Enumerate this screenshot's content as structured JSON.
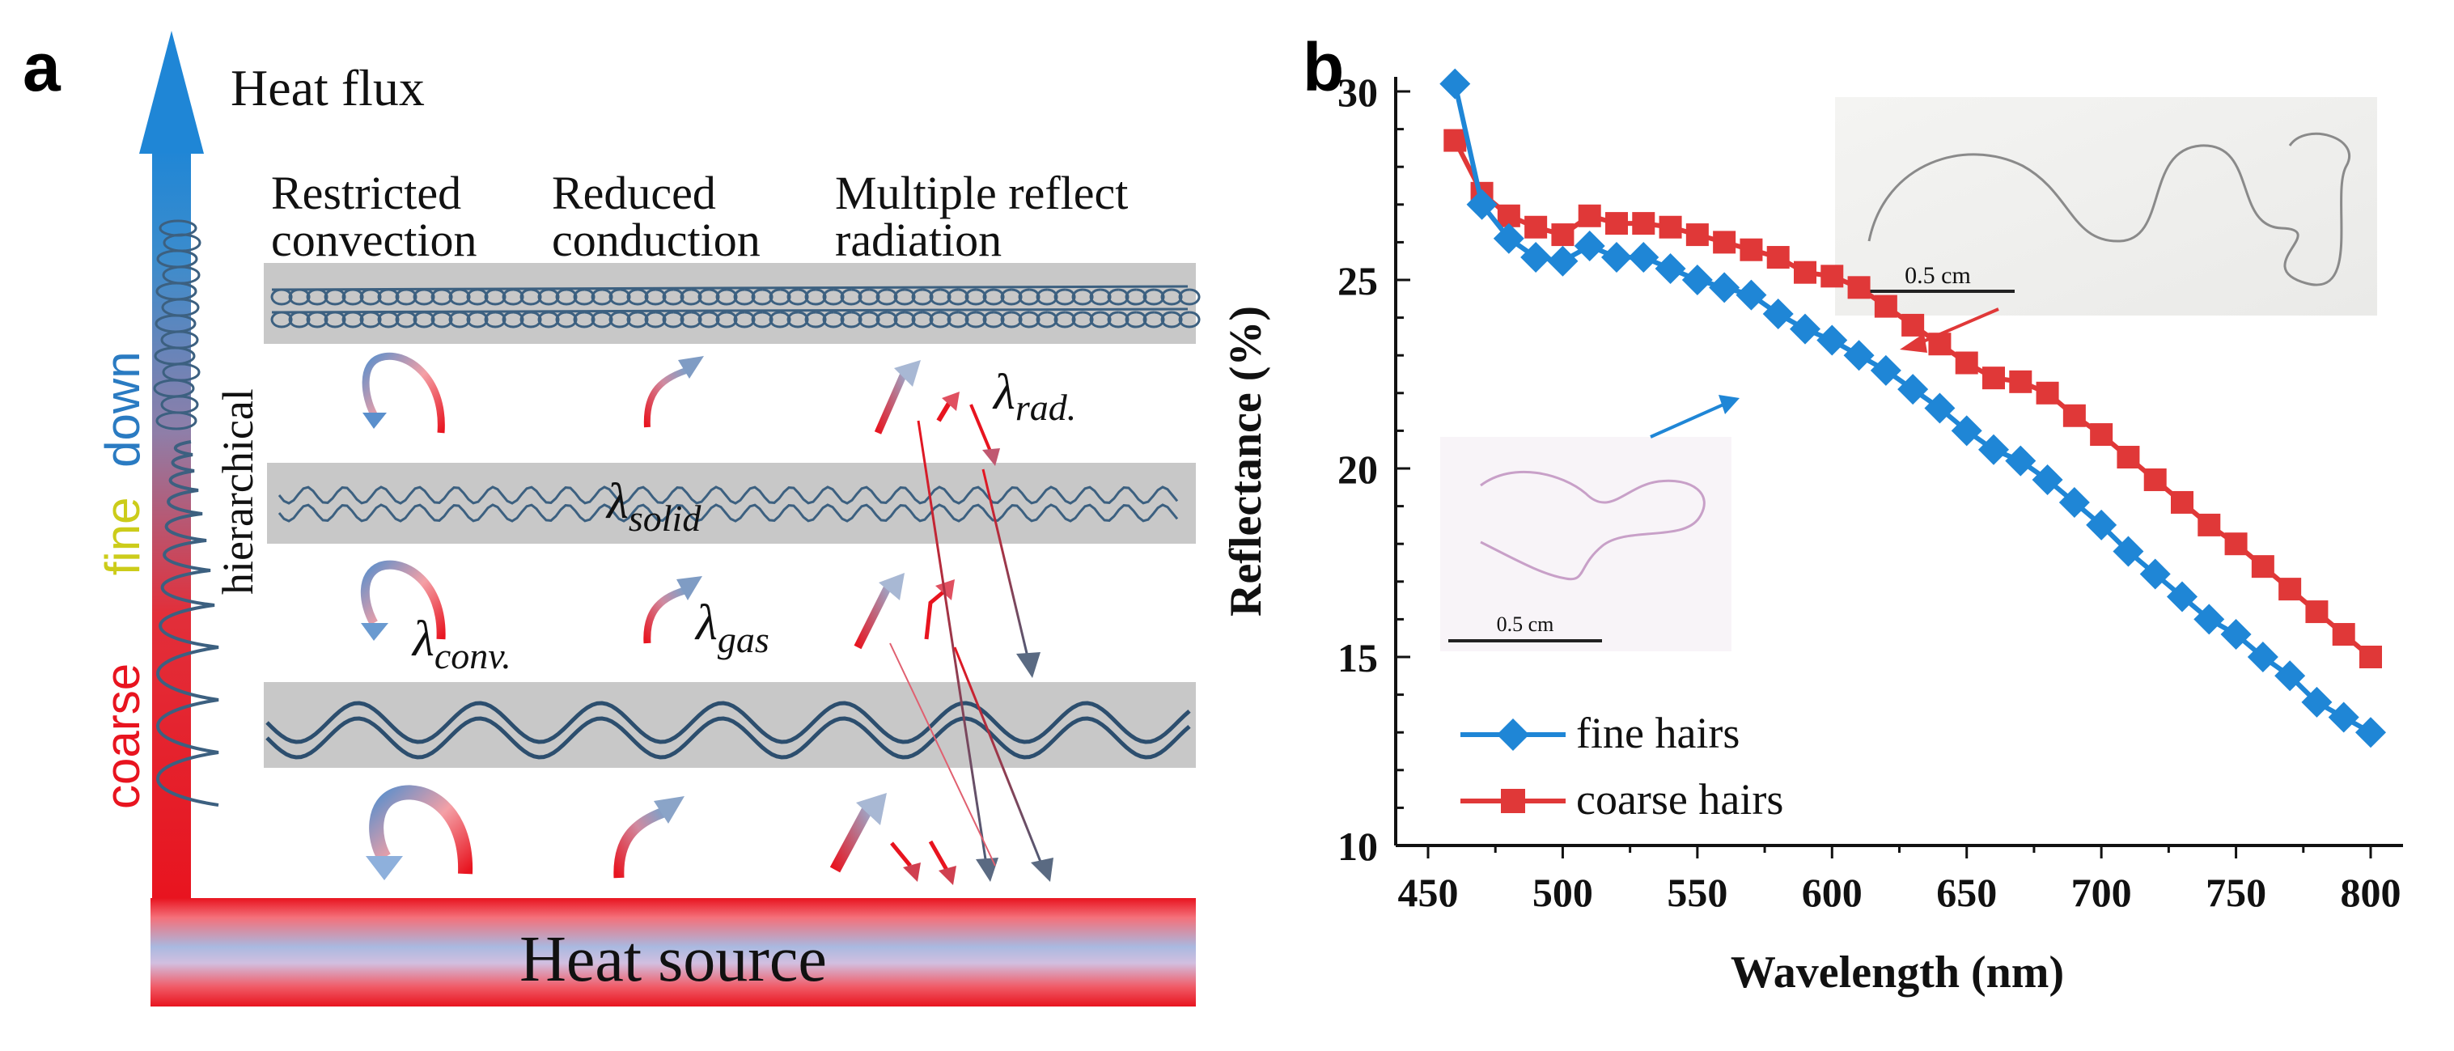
{
  "panel_a": {
    "label": "a",
    "heat_flux": "Heat flux",
    "gradient_words": {
      "coarse": "coarse",
      "fine": "fine",
      "down": "down"
    },
    "hierarchical": "hierarchical",
    "mechanisms": {
      "convection_1": "Restricted",
      "convection_2": "convection",
      "conduction_1": "Reduced",
      "conduction_2": "conduction",
      "radiation_1": "Multiple reflect",
      "radiation_2": "radiation"
    },
    "symbols": {
      "lambda": "λ",
      "rad_sub": "rad.",
      "solid_sub": "solid",
      "conv_sub": "conv.",
      "gas_sub": "gas"
    },
    "heat_source": "Heat source",
    "colors": {
      "hot": "#e8141f",
      "cool": "#2a7bc2",
      "fine_text": "#cccc1a",
      "layer": "#c8c8c8",
      "fiber": "#3c6080"
    }
  },
  "panel_b": {
    "label": "b",
    "inset_scale_top": "0.5 cm",
    "inset_scale_bottom": "0.5 cm"
  },
  "chart_data": {
    "type": "line",
    "xlabel": "Wavelength (nm)",
    "ylabel": "Reflectance (%)",
    "xlim": [
      450,
      800
    ],
    "ylim": [
      10,
      30
    ],
    "xticks": [
      450,
      500,
      550,
      600,
      650,
      700,
      750,
      800
    ],
    "yticks": [
      10,
      15,
      20,
      25,
      30
    ],
    "legend_position": "bottom-left",
    "grid": false,
    "x": [
      460,
      470,
      480,
      490,
      500,
      510,
      520,
      530,
      540,
      550,
      560,
      570,
      580,
      590,
      600,
      610,
      620,
      630,
      640,
      650,
      660,
      670,
      680,
      690,
      700,
      710,
      720,
      730,
      740,
      750,
      760,
      770,
      780,
      790,
      800
    ],
    "series": [
      {
        "name": "fine hairs",
        "color": "#1f86d6",
        "marker": "diamond",
        "values": [
          30.2,
          27.0,
          26.1,
          25.6,
          25.5,
          25.9,
          25.6,
          25.6,
          25.3,
          25.0,
          24.8,
          24.6,
          24.1,
          23.7,
          23.4,
          23.0,
          22.6,
          22.1,
          21.6,
          21.0,
          20.5,
          20.2,
          19.7,
          19.1,
          18.5,
          17.8,
          17.2,
          16.6,
          16.0,
          15.6,
          15.0,
          14.5,
          13.8,
          13.4,
          13.0
        ]
      },
      {
        "name": "coarse hairs",
        "color": "#e03838",
        "marker": "square",
        "values": [
          28.7,
          27.3,
          26.7,
          26.4,
          26.2,
          26.7,
          26.5,
          26.5,
          26.4,
          26.2,
          26.0,
          25.8,
          25.6,
          25.2,
          25.1,
          24.8,
          24.3,
          23.8,
          23.3,
          22.8,
          22.4,
          22.3,
          22.0,
          21.4,
          20.9,
          20.3,
          19.7,
          19.1,
          18.5,
          18.0,
          17.4,
          16.8,
          16.2,
          15.6,
          15.0
        ]
      }
    ]
  }
}
